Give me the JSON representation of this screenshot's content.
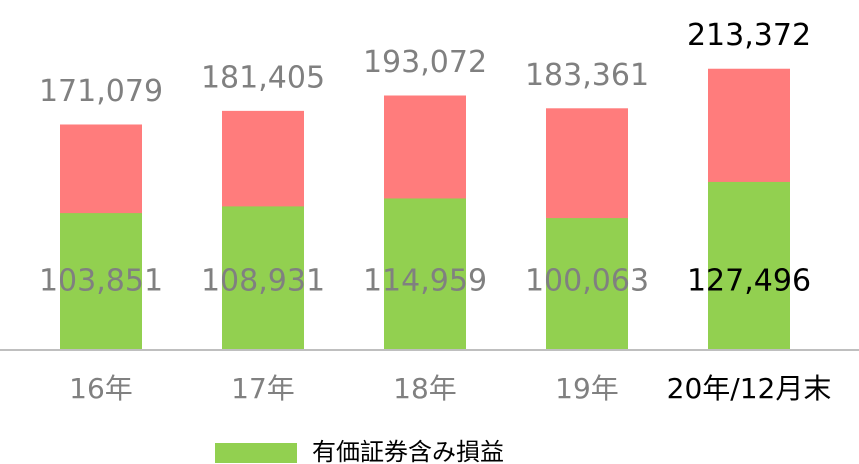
{
  "chart_data": {
    "type": "bar",
    "categories": [
      "16年",
      "17年",
      "18年",
      "19年",
      "20年/12月末"
    ],
    "series": [
      {
        "color": "#ff7c7c",
        "values": [
          171079,
          181405,
          193072,
          183361,
          213372
        ],
        "value_labels": [
          "171,079",
          "181,405",
          "193,072",
          "183,361",
          "213,372"
        ]
      },
      {
        "name": "有価証券含み損益",
        "color": "#92d050",
        "values": [
          103851,
          108931,
          114959,
          100063,
          127496
        ],
        "value_labels": [
          "103,851",
          "108,931",
          "114,959",
          "100,063",
          "127,496"
        ]
      }
    ],
    "label_colors": [
      "#808080",
      "#808080",
      "#808080",
      "#808080",
      "#000000"
    ],
    "ylim": [
      0,
      220000
    ]
  }
}
